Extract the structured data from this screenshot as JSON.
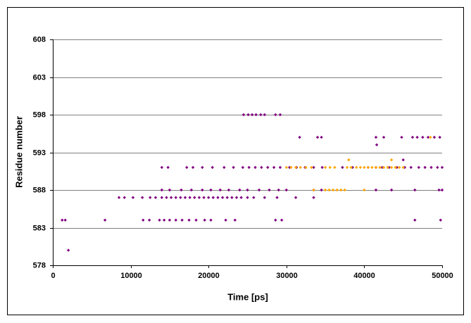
{
  "chart_data": {
    "type": "scatter",
    "x_label": "Time [ps]",
    "y_label": "Residue number",
    "xlim": [
      0,
      50000
    ],
    "xticks": [
      0,
      10000,
      20000,
      30000,
      40000,
      50000
    ],
    "ylim": [
      578,
      608
    ],
    "yticks": [
      578,
      583,
      588,
      593,
      598,
      603,
      608
    ],
    "grid": true,
    "series": [
      {
        "color": "#800080",
        "x": [
          2000,
          1200,
          1600,
          6700,
          11600,
          12400,
          13700,
          14300,
          15000,
          15800,
          16600,
          17500,
          18400,
          19500,
          20300,
          22200,
          23400,
          28600,
          29400,
          46500,
          49800,
          8500,
          9200,
          10300,
          11500,
          12500,
          13200,
          14000,
          14600,
          15200,
          15800,
          16400,
          17000,
          17600,
          18200,
          18800,
          19400,
          20000,
          20600,
          21200,
          21800,
          22400,
          23000,
          23600,
          24200,
          25000,
          25800,
          27200,
          28800,
          31200,
          33500,
          14000,
          15000,
          16500,
          17800,
          19200,
          20300,
          21500,
          22600,
          24000,
          25000,
          26500,
          27800,
          29000,
          30000,
          33500,
          34500,
          41500,
          43500,
          46500,
          49600,
          50000,
          14000,
          14800,
          17200,
          18000,
          19200,
          20500,
          22000,
          23200,
          24400,
          25200,
          26000,
          26800,
          27600,
          28400,
          29200,
          30400,
          31300,
          32400,
          33500,
          34600,
          37200,
          38500,
          40500,
          41500,
          42300,
          43200,
          44200,
          45200,
          46000,
          47000,
          47800,
          48600,
          49400,
          50000,
          45000,
          41600,
          31700,
          34000,
          34500,
          41500,
          42500,
          44800,
          46200,
          46800,
          47500,
          48200,
          49000,
          49700,
          24500,
          25100,
          25600,
          26100,
          26700,
          27200,
          28600,
          29200
        ],
        "values": [
          580,
          584,
          584,
          584,
          584,
          584,
          584,
          584,
          584,
          584,
          584,
          584,
          584,
          584,
          584,
          584,
          584,
          584,
          584,
          584,
          584,
          587,
          587,
          587,
          587,
          587,
          587,
          587,
          587,
          587,
          587,
          587,
          587,
          587,
          587,
          587,
          587,
          587,
          587,
          587,
          587,
          587,
          587,
          587,
          587,
          587,
          587,
          587,
          587,
          587,
          587,
          588,
          588,
          588,
          588,
          588,
          588,
          588,
          588,
          588,
          588,
          588,
          588,
          588,
          588,
          588,
          588,
          588,
          588,
          588,
          588,
          588,
          591,
          591,
          591,
          591,
          591,
          591,
          591,
          591,
          591,
          591,
          591,
          591,
          591,
          591,
          591,
          591,
          591,
          591,
          591,
          591,
          591,
          591,
          591,
          591,
          591,
          591,
          591,
          591,
          591,
          591,
          591,
          591,
          591,
          591,
          592,
          594,
          595,
          595,
          595,
          595,
          595,
          595,
          595,
          595,
          595,
          595,
          595,
          595,
          598,
          598,
          598,
          598,
          598,
          598,
          598,
          598
        ]
      },
      {
        "color": "#ffa500",
        "x": [
          30000,
          30600,
          31200,
          31800,
          32500,
          33200,
          35000,
          35600,
          36200,
          37800,
          38300,
          39000,
          39500,
          40000,
          40500,
          41000,
          41500,
          42000,
          42500,
          43000,
          43500,
          44000,
          44500,
          45000,
          33500,
          35000,
          35500,
          36000,
          36500,
          37000,
          37500,
          40000,
          38000,
          43500,
          48500
        ],
        "values": [
          591,
          591,
          591,
          591,
          591,
          591,
          591,
          591,
          591,
          591,
          591,
          591,
          591,
          591,
          591,
          591,
          591,
          591,
          591,
          591,
          591,
          591,
          591,
          591,
          588,
          588,
          588,
          588,
          588,
          588,
          588,
          588,
          592,
          592,
          595
        ]
      }
    ]
  }
}
